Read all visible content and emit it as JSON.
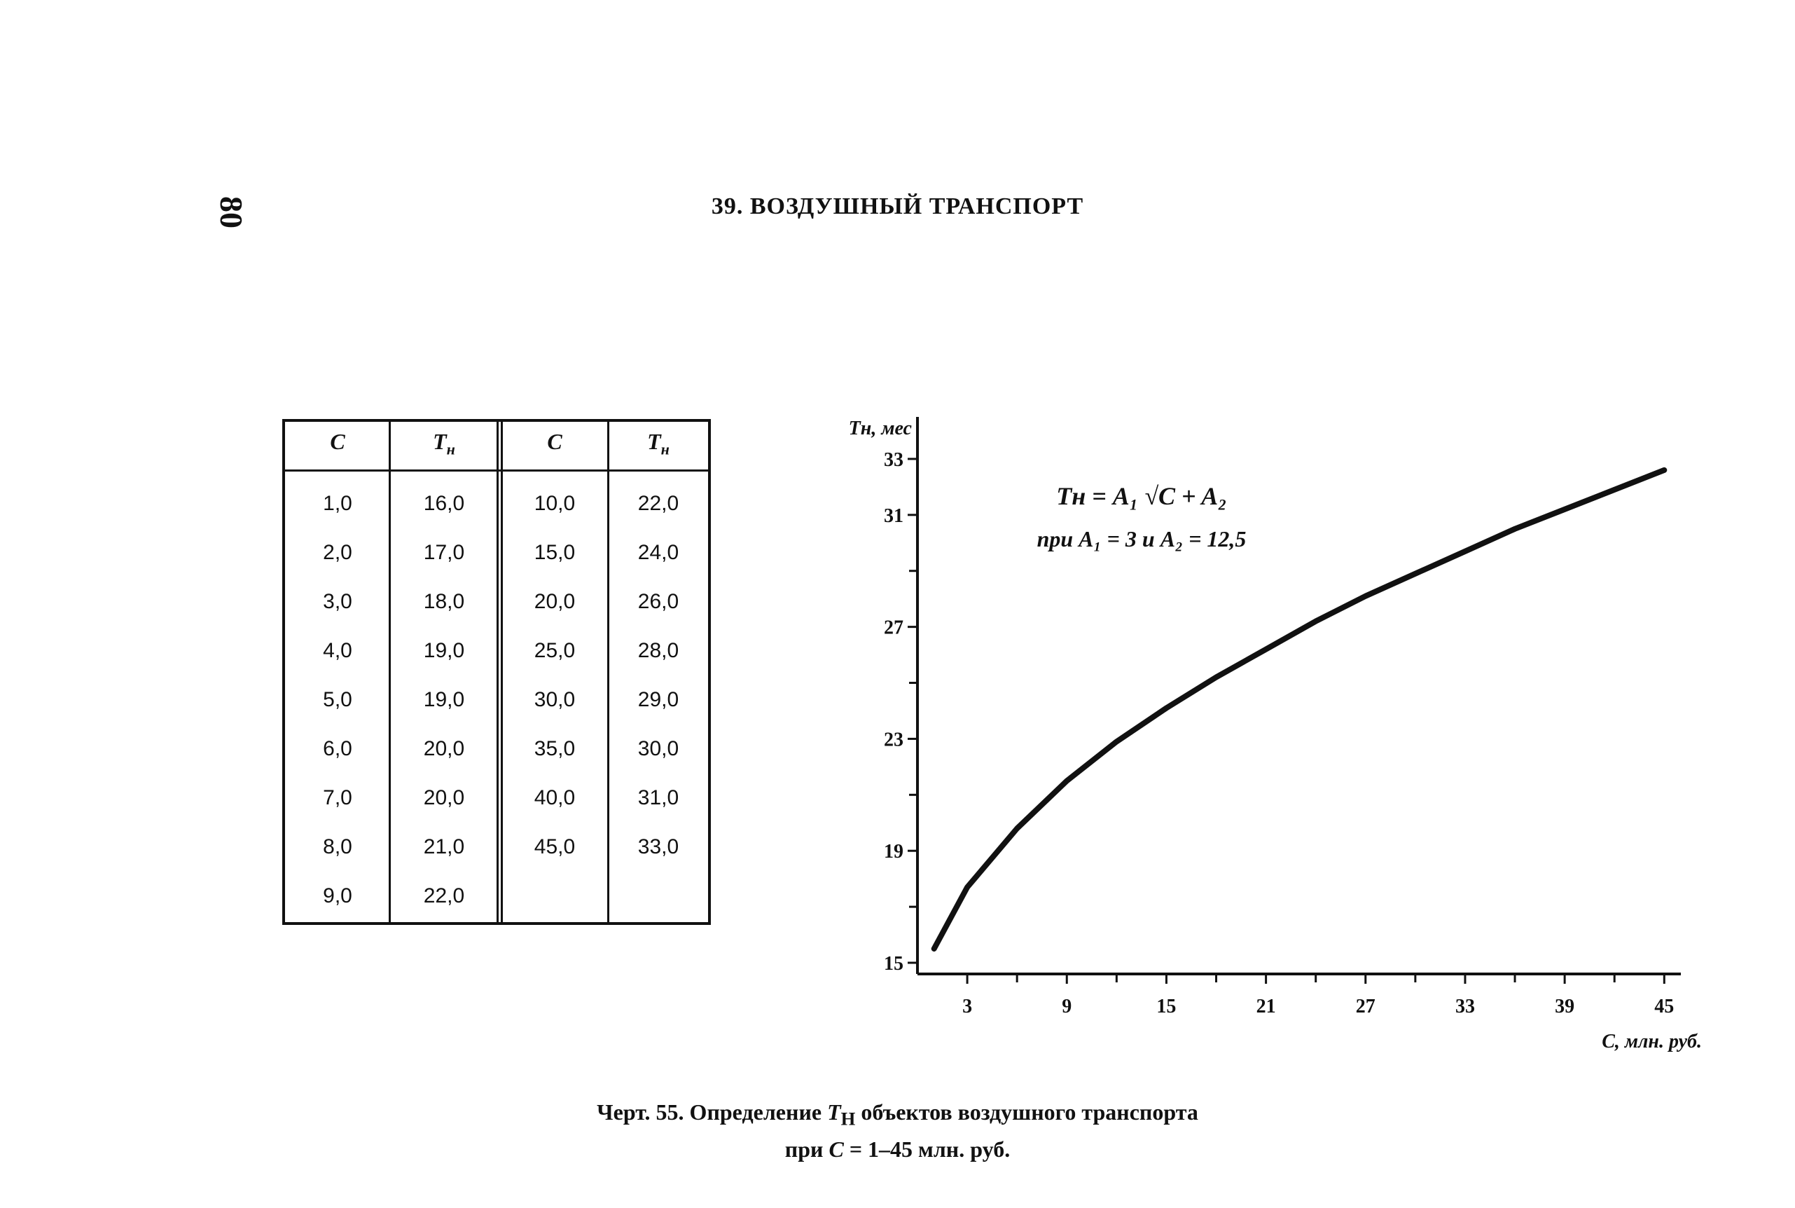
{
  "page": {
    "number": "80",
    "header": "39. ВОЗДУШНЫЙ ТРАНСПОРТ"
  },
  "table": {
    "headers": [
      "C",
      "T",
      "C",
      "T"
    ],
    "header_subscript": "н",
    "left_rows": [
      [
        "1,0",
        "16,0"
      ],
      [
        "2,0",
        "17,0"
      ],
      [
        "3,0",
        "18,0"
      ],
      [
        "4,0",
        "19,0"
      ],
      [
        "5,0",
        "19,0"
      ],
      [
        "6,0",
        "20,0"
      ],
      [
        "7,0",
        "20,0"
      ],
      [
        "8,0",
        "21,0"
      ],
      [
        "9,0",
        "22,0"
      ]
    ],
    "right_rows": [
      [
        "10,0",
        "22,0"
      ],
      [
        "15,0",
        "24,0"
      ],
      [
        "20,0",
        "26,0"
      ],
      [
        "25,0",
        "28,0"
      ],
      [
        "30,0",
        "29,0"
      ],
      [
        "35,0",
        "30,0"
      ],
      [
        "40,0",
        "31,0"
      ],
      [
        "45,0",
        "33,0"
      ]
    ]
  },
  "chart_data": {
    "type": "line",
    "ylabel": "Tн, мес",
    "xlabel": "C, млн. руб.",
    "formula_line1": "Tн = A₁ √C + A₂",
    "formula_line2": "при A₁ = 3 и A₂ = 12,5",
    "xlim": [
      0,
      46
    ],
    "ylim": [
      14.6,
      34
    ],
    "x_ticks": [
      3,
      9,
      15,
      21,
      27,
      33,
      39,
      45
    ],
    "x_minor_ticks": [
      6,
      12,
      18,
      24,
      30,
      36,
      42
    ],
    "y_ticks": [
      15,
      19,
      23,
      27,
      31,
      33
    ],
    "y_minor_ticks": [
      17,
      21,
      25,
      29
    ],
    "series": [
      {
        "values": [
          [
            1,
            15.5
          ],
          [
            3,
            17.7
          ],
          [
            6,
            19.8
          ],
          [
            9,
            21.5
          ],
          [
            12,
            22.9
          ],
          [
            15,
            24.1
          ],
          [
            18,
            25.2
          ],
          [
            21,
            26.2
          ],
          [
            24,
            27.2
          ],
          [
            27,
            28.1
          ],
          [
            30,
            28.9
          ],
          [
            33,
            29.7
          ],
          [
            36,
            30.5
          ],
          [
            39,
            31.2
          ],
          [
            42,
            31.9
          ],
          [
            45,
            32.6
          ]
        ]
      }
    ]
  },
  "caption": {
    "line1_a": "Черт. 55. Определение ",
    "line1_var": "T",
    "line1_sub": "Н",
    "line1_b": " объектов воздушного транспорта",
    "line2_a": "при ",
    "line2_var": "C",
    "line2_b": " = 1–45 млн. руб."
  }
}
